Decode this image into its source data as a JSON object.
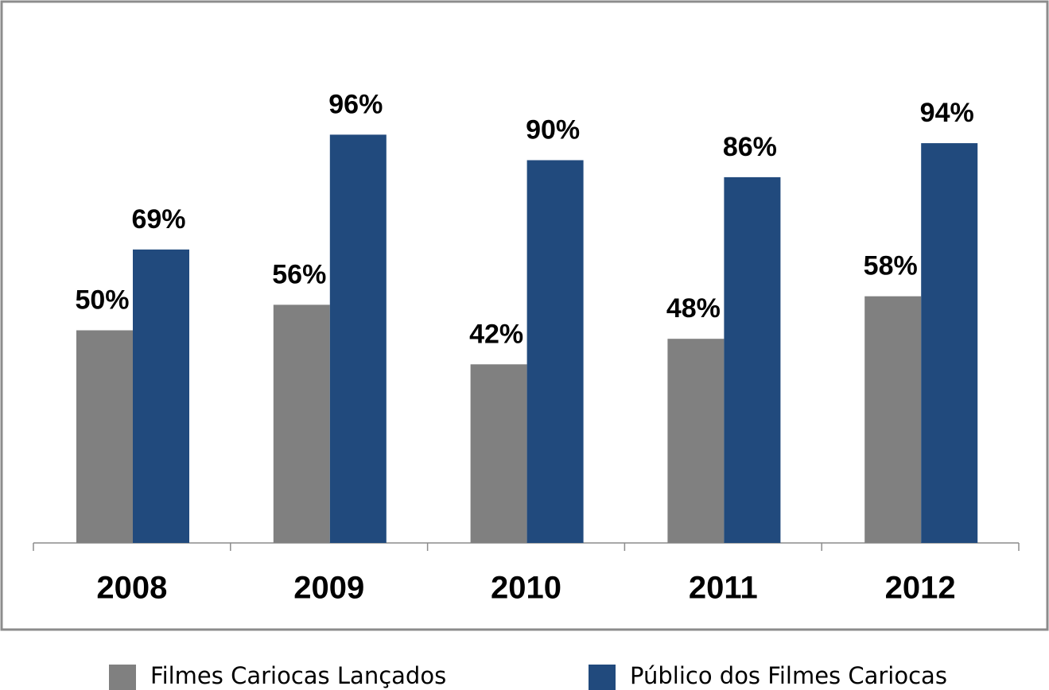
{
  "chart_data": {
    "type": "bar",
    "categories": [
      "2008",
      "2009",
      "2010",
      "2011",
      "2012"
    ],
    "series": [
      {
        "name": "Filmes Cariocas Lançados",
        "color": "#808080",
        "values": [
          50,
          56,
          42,
          48,
          58
        ],
        "value_labels": [
          "50%",
          "56%",
          "42%",
          "48%",
          "58%"
        ]
      },
      {
        "name": "Público dos Filmes Cariocas",
        "color": "#214a7d",
        "values": [
          69,
          96,
          90,
          86,
          94
        ],
        "value_labels": [
          "69%",
          "96%",
          "90%",
          "86%",
          "94%"
        ]
      }
    ]
  }
}
